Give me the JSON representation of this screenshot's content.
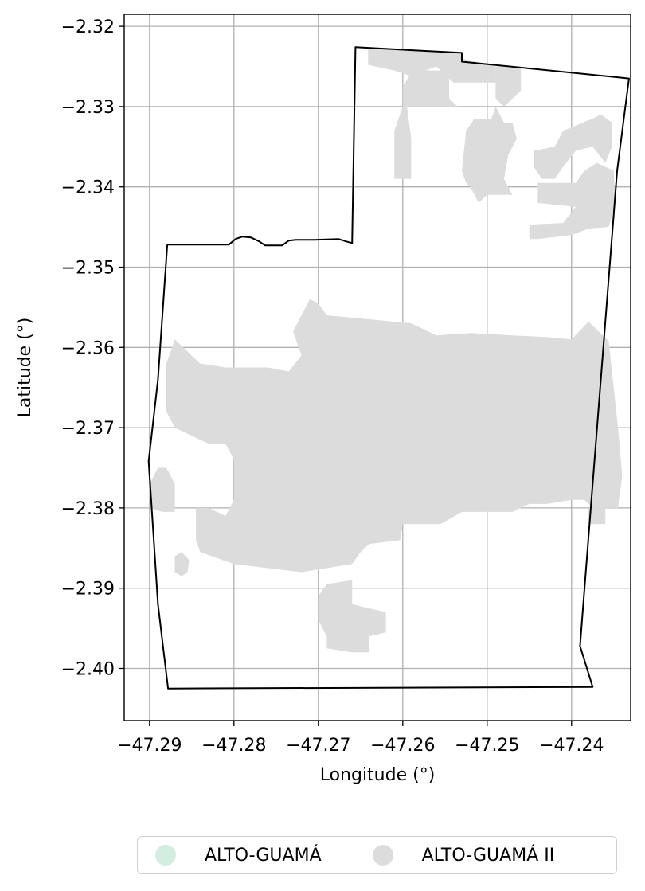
{
  "chart_data": {
    "type": "map",
    "xlabel": "Longitude (°)",
    "ylabel": "Latitude (°)",
    "xlim": [
      -47.293,
      -47.233
    ],
    "ylim": [
      -2.4065,
      -2.3185
    ],
    "x_ticks": [
      -47.29,
      -47.28,
      -47.27,
      -47.26,
      -47.25,
      -47.24
    ],
    "x_tick_labels": [
      "−47.29",
      "−47.28",
      "−47.27",
      "−47.26",
      "−47.25",
      "−47.24"
    ],
    "y_ticks": [
      -2.32,
      -2.33,
      -2.34,
      -2.35,
      -2.36,
      -2.37,
      -2.38,
      -2.39,
      -2.4
    ],
    "y_tick_labels": [
      "−2.32",
      "−2.33",
      "−2.34",
      "−2.35",
      "−2.36",
      "−2.37",
      "−2.38",
      "−2.39",
      "−2.40"
    ],
    "grid": true,
    "legend": {
      "placement": "bottom-center",
      "entries": [
        {
          "label": "ALTO-GUAMÁ",
          "color": "#d3ede0"
        },
        {
          "label": "ALTO-GUAMÁ II",
          "color": "#dcdcdc"
        }
      ]
    },
    "boundary": [
      [
        -47.2879,
        -2.3472
      ],
      [
        -47.2806,
        -2.3472
      ],
      [
        -47.2798,
        -2.3465
      ],
      [
        -47.279,
        -2.3462
      ],
      [
        -47.278,
        -2.3463
      ],
      [
        -47.277,
        -2.3468
      ],
      [
        -47.2763,
        -2.3473
      ],
      [
        -47.2743,
        -2.3473
      ],
      [
        -47.2735,
        -2.3467
      ],
      [
        -47.2727,
        -2.3466
      ],
      [
        -47.2705,
        -2.3466
      ],
      [
        -47.2676,
        -2.3465
      ],
      [
        -47.2667,
        -2.3468
      ],
      [
        -47.266,
        -2.347
      ],
      [
        -47.2656,
        -2.3226
      ],
      [
        -47.253,
        -2.3233
      ],
      [
        -47.253,
        -2.3244
      ],
      [
        -47.2332,
        -2.3265
      ],
      [
        -47.2346,
        -2.338
      ],
      [
        -47.239,
        -2.3972
      ],
      [
        -47.2375,
        -2.4023
      ],
      [
        -47.2878,
        -2.4025
      ],
      [
        -47.289,
        -2.392
      ],
      [
        -47.2901,
        -2.3742
      ],
      [
        -47.289,
        -2.364
      ],
      [
        -47.2879,
        -2.3472
      ]
    ],
    "regions": [
      {
        "name": "ALTO-GUAMÁ II",
        "color": "#dcdcdc",
        "polygons": [
          [
            [
              -47.2641,
              -2.3226
            ],
            [
              -47.253,
              -2.3233
            ],
            [
              -47.253,
              -2.324
            ],
            [
              -47.249,
              -2.325
            ],
            [
              -47.249,
              -2.327
            ],
            [
              -47.254,
              -2.327
            ],
            [
              -47.256,
              -2.325
            ],
            [
              -47.259,
              -2.3262
            ],
            [
              -47.261,
              -2.3255
            ],
            [
              -47.2641,
              -2.3248
            ]
          ],
          [
            [
              -47.2595,
              -2.33
            ],
            [
              -47.2535,
              -2.33
            ],
            [
              -47.2545,
              -2.329
            ],
            [
              -47.2545,
              -2.3255
            ],
            [
              -47.2585,
              -2.3255
            ],
            [
              -47.259,
              -2.3258
            ],
            [
              -47.26,
              -2.3275
            ],
            [
              -47.26,
              -2.33
            ],
            [
              -47.261,
              -2.333
            ],
            [
              -47.261,
              -2.339
            ],
            [
              -47.259,
              -2.339
            ],
            [
              -47.259,
              -2.334
            ],
            [
              -47.2595,
              -2.33
            ]
          ],
          [
            [
              -47.246,
              -2.325
            ],
            [
              -47.249,
              -2.325
            ],
            [
              -47.249,
              -2.329
            ],
            [
              -47.248,
              -2.33
            ],
            [
              -47.247,
              -2.329
            ],
            [
              -47.246,
              -2.328
            ]
          ],
          [
            [
              -47.253,
              -2.338
            ],
            [
              -47.2525,
              -2.333
            ],
            [
              -47.2515,
              -2.3315
            ],
            [
              -47.2495,
              -2.3315
            ],
            [
              -47.249,
              -2.33
            ],
            [
              -47.248,
              -2.332
            ],
            [
              -47.247,
              -2.332
            ],
            [
              -47.2465,
              -2.334
            ],
            [
              -47.2475,
              -2.336
            ],
            [
              -47.248,
              -2.339
            ],
            [
              -47.247,
              -2.341
            ],
            [
              -47.25,
              -2.341
            ],
            [
              -47.251,
              -2.342
            ],
            [
              -47.252,
              -2.34
            ],
            [
              -47.2525,
              -2.3395
            ],
            [
              -47.253,
              -2.338
            ]
          ],
          [
            [
              -47.2445,
              -2.3355
            ],
            [
              -47.242,
              -2.335
            ],
            [
              -47.241,
              -2.333
            ],
            [
              -47.2375,
              -2.3315
            ],
            [
              -47.2365,
              -2.331
            ],
            [
              -47.2352,
              -2.332
            ],
            [
              -47.2352,
              -2.335
            ],
            [
              -47.236,
              -2.337
            ],
            [
              -47.2375,
              -2.335
            ],
            [
              -47.2395,
              -2.3355
            ],
            [
              -47.241,
              -2.3375
            ],
            [
              -47.242,
              -2.339
            ],
            [
              -47.2435,
              -2.339
            ],
            [
              -47.2445,
              -2.3375
            ]
          ],
          [
            [
              -47.244,
              -2.3395
            ],
            [
              -47.2395,
              -2.3395
            ],
            [
              -47.2385,
              -2.338
            ],
            [
              -47.237,
              -2.337
            ],
            [
              -47.235,
              -2.338
            ],
            [
              -47.2348,
              -2.342
            ],
            [
              -47.2356,
              -2.345
            ],
            [
              -47.238,
              -2.3452
            ],
            [
              -47.24,
              -2.346
            ],
            [
              -47.244,
              -2.3465
            ],
            [
              -47.245,
              -2.3465
            ],
            [
              -47.245,
              -2.3447
            ],
            [
              -47.241,
              -2.3445
            ],
            [
              -47.2395,
              -2.3425
            ],
            [
              -47.244,
              -2.342
            ]
          ],
          [
            [
              -47.271,
              -2.354
            ],
            [
              -47.27,
              -2.3545
            ],
            [
              -47.269,
              -2.356
            ],
            [
              -47.264,
              -2.3565
            ],
            [
              -47.259,
              -2.357
            ],
            [
              -47.256,
              -2.3585
            ],
            [
              -47.252,
              -2.3582
            ],
            [
              -47.247,
              -2.3585
            ],
            [
              -47.243,
              -2.3587
            ],
            [
              -47.24,
              -2.359
            ],
            [
              -47.238,
              -2.3568
            ],
            [
              -47.2356,
              -2.3592
            ],
            [
              -47.2345,
              -2.37
            ],
            [
              -47.234,
              -2.376
            ],
            [
              -47.2345,
              -2.38
            ],
            [
              -47.2375,
              -2.38
            ],
            [
              -47.2385,
              -2.379
            ],
            [
              -47.24,
              -2.379
            ],
            [
              -47.243,
              -2.3795
            ],
            [
              -47.245,
              -2.3795
            ],
            [
              -47.247,
              -2.3805
            ],
            [
              -47.25,
              -2.3805
            ],
            [
              -47.253,
              -2.3805
            ],
            [
              -47.2555,
              -2.382
            ],
            [
              -47.259,
              -2.382
            ],
            [
              -47.26,
              -2.382
            ],
            [
              -47.2603,
              -2.384
            ],
            [
              -47.264,
              -2.3845
            ],
            [
              -47.265,
              -2.3855
            ],
            [
              -47.266,
              -2.387
            ],
            [
              -47.272,
              -2.388
            ],
            [
              -47.276,
              -2.3875
            ],
            [
              -47.28,
              -2.387
            ],
            [
              -47.284,
              -2.3855
            ],
            [
              -47.2845,
              -2.384
            ],
            [
              -47.2845,
              -2.38
            ],
            [
              -47.283,
              -2.38
            ],
            [
              -47.281,
              -2.381
            ],
            [
              -47.28,
              -2.379
            ],
            [
              -47.28,
              -2.374
            ],
            [
              -47.281,
              -2.372
            ],
            [
              -47.283,
              -2.372
            ],
            [
              -47.287,
              -2.37
            ],
            [
              -47.288,
              -2.368
            ],
            [
              -47.288,
              -2.362
            ],
            [
              -47.287,
              -2.359
            ],
            [
              -47.285,
              -2.361
            ],
            [
              -47.284,
              -2.362
            ],
            [
              -47.281,
              -2.3625
            ],
            [
              -47.276,
              -2.3625
            ],
            [
              -47.2735,
              -2.363
            ],
            [
              -47.272,
              -2.361
            ],
            [
              -47.273,
              -2.358
            ],
            [
              -47.271,
              -2.354
            ]
          ],
          [
            [
              -47.29,
              -2.377
            ],
            [
              -47.289,
              -2.375
            ],
            [
              -47.288,
              -2.375
            ],
            [
              -47.287,
              -2.377
            ],
            [
              -47.287,
              -2.3805
            ],
            [
              -47.2885,
              -2.3805
            ],
            [
              -47.29,
              -2.38
            ]
          ],
          [
            [
              -47.287,
              -2.388
            ],
            [
              -47.287,
              -2.386
            ],
            [
              -47.2862,
              -2.3855
            ],
            [
              -47.2853,
              -2.3865
            ],
            [
              -47.2855,
              -2.388
            ],
            [
              -47.2862,
              -2.3885
            ]
          ],
          [
            [
              -47.266,
              -2.389
            ],
            [
              -47.269,
              -2.3895
            ],
            [
              -47.27,
              -2.391
            ],
            [
              -47.27,
              -2.394
            ],
            [
              -47.269,
              -2.396
            ],
            [
              -47.269,
              -2.3975
            ],
            [
              -47.266,
              -2.398
            ],
            [
              -47.264,
              -2.398
            ],
            [
              -47.264,
              -2.396
            ],
            [
              -47.262,
              -2.3955
            ],
            [
              -47.262,
              -2.393
            ],
            [
              -47.264,
              -2.3925
            ],
            [
              -47.266,
              -2.392
            ],
            [
              -47.266,
              -2.389
            ]
          ],
          [
            [
              -47.238,
              -2.382
            ],
            [
              -47.236,
              -2.382
            ],
            [
              -47.236,
              -2.38
            ],
            [
              -47.238,
              -2.38
            ]
          ]
        ]
      }
    ]
  }
}
